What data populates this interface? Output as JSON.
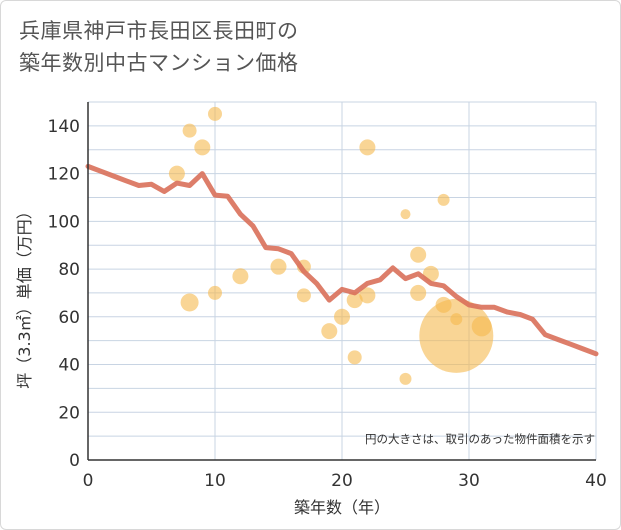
{
  "title": {
    "line1": "兵庫県神戸市長田区長田町の",
    "line2": "築年数別中古マンション価格"
  },
  "note": "円の大きさは、取引のあった物件面積を示す",
  "colors": {
    "line": "#d9705a",
    "bubble": "#f5b94f",
    "grid": "#c8d4e3",
    "axis": "#333333"
  },
  "chart_data": {
    "type": "scatter",
    "xlabel": "築年数（年）",
    "ylabel": "坪（3.3㎡）単価（万円）",
    "xlim": [
      0,
      40
    ],
    "ylim": [
      0,
      150
    ],
    "xticks": [
      0,
      10,
      20,
      30,
      40
    ],
    "yticks": [
      0,
      20,
      40,
      60,
      80,
      100,
      120,
      140
    ],
    "grid": true,
    "trend_line": [
      [
        0,
        123
      ],
      [
        1,
        121
      ],
      [
        2,
        119
      ],
      [
        3,
        117
      ],
      [
        4,
        115
      ],
      [
        5,
        115.5
      ],
      [
        6,
        112.5
      ],
      [
        7,
        116
      ],
      [
        8,
        115
      ],
      [
        9,
        120
      ],
      [
        10,
        111
      ],
      [
        11,
        110.5
      ],
      [
        12,
        103
      ],
      [
        13,
        98
      ],
      [
        14,
        89
      ],
      [
        15,
        88.5
      ],
      [
        16,
        86.5
      ],
      [
        17,
        79
      ],
      [
        18,
        74
      ],
      [
        19,
        67
      ],
      [
        20,
        71.5
      ],
      [
        21,
        70
      ],
      [
        22,
        74
      ],
      [
        23,
        75.5
      ],
      [
        24,
        80.5
      ],
      [
        25,
        76
      ],
      [
        26,
        78
      ],
      [
        27,
        74
      ],
      [
        28,
        73
      ],
      [
        29,
        68.5
      ],
      [
        30,
        65
      ],
      [
        31,
        64
      ],
      [
        32,
        64
      ],
      [
        33,
        62
      ],
      [
        34,
        61
      ],
      [
        35,
        59
      ],
      [
        36,
        52.5
      ],
      [
        37,
        50.5
      ],
      [
        38,
        48.5
      ],
      [
        39,
        46.5
      ],
      [
        40,
        44.5
      ]
    ],
    "points": [
      {
        "x": 7,
        "y": 120,
        "r": 8
      },
      {
        "x": 8,
        "y": 138,
        "r": 7
      },
      {
        "x": 9,
        "y": 131,
        "r": 8
      },
      {
        "x": 10,
        "y": 145,
        "r": 7
      },
      {
        "x": 8,
        "y": 66,
        "r": 9
      },
      {
        "x": 10,
        "y": 70,
        "r": 7
      },
      {
        "x": 12,
        "y": 77,
        "r": 8
      },
      {
        "x": 15,
        "y": 81,
        "r": 8
      },
      {
        "x": 17,
        "y": 81,
        "r": 7
      },
      {
        "x": 17,
        "y": 69,
        "r": 7
      },
      {
        "x": 19,
        "y": 54,
        "r": 8
      },
      {
        "x": 20,
        "y": 60,
        "r": 8
      },
      {
        "x": 21,
        "y": 67,
        "r": 8
      },
      {
        "x": 21,
        "y": 43,
        "r": 7
      },
      {
        "x": 22,
        "y": 131,
        "r": 8
      },
      {
        "x": 22,
        "y": 69,
        "r": 8
      },
      {
        "x": 25,
        "y": 103,
        "r": 5
      },
      {
        "x": 25,
        "y": 34,
        "r": 6
      },
      {
        "x": 26,
        "y": 86,
        "r": 8
      },
      {
        "x": 26,
        "y": 70,
        "r": 8
      },
      {
        "x": 27,
        "y": 78,
        "r": 8
      },
      {
        "x": 28,
        "y": 109,
        "r": 6
      },
      {
        "x": 28,
        "y": 65,
        "r": 8
      },
      {
        "x": 29,
        "y": 59,
        "r": 6
      },
      {
        "x": 29,
        "y": 52,
        "r": 37
      },
      {
        "x": 31,
        "y": 56,
        "r": 10
      }
    ]
  }
}
